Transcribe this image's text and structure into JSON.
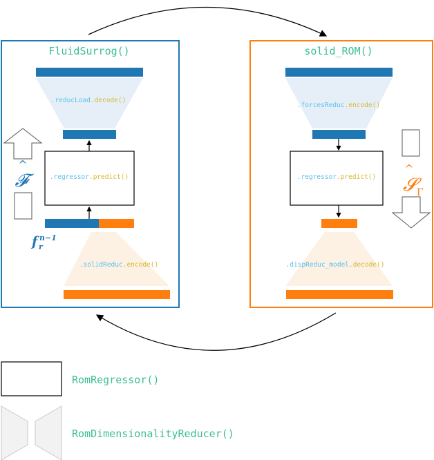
{
  "left_module": {
    "title": "FluidSurrog()",
    "decoder_label": {
      "obj": ".reducLoad",
      "method": ".decode()"
    },
    "regressor_label": {
      "obj": ".regressor",
      "method": ".predict()"
    },
    "encoder_label": {
      "obj": ".solidReduc",
      "method": ".encode()"
    },
    "output_symbol": "𝓕",
    "input_symbol": "f",
    "input_sub": "r",
    "input_sup": "n−1"
  },
  "right_module": {
    "title": "solid_ROM()",
    "encoder_label": {
      "obj": ".forcesReduc",
      "method": ".encode()"
    },
    "regressor_label": {
      "obj": ".regressor",
      "method": ".predict()"
    },
    "decoder_label": {
      "obj": ".dispReduc_model",
      "method": ".decode()"
    },
    "output_symbol": "𝓢",
    "output_sub": "Γ"
  },
  "legend": {
    "regressor": "RomRegressor()",
    "reducer": "RomDimensionalityReducer()"
  },
  "colors": {
    "blue": "#1f77b4",
    "orange": "#ff7f0e",
    "teal_text": "#2ca02c",
    "title_green": "#3cbf8f",
    "cyan_text": "#5bc0eb",
    "gold_text": "#d4b833",
    "trapezoid_blue": "#e6eff7",
    "trapezoid_orange": "#fdf1e4"
  }
}
